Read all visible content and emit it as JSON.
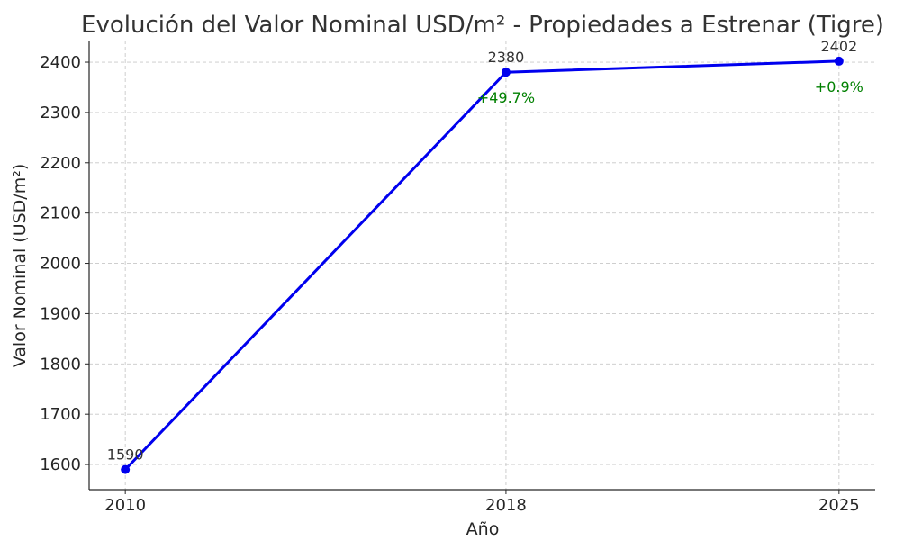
{
  "chart_data": {
    "type": "line",
    "title": "Evolución del Valor Nominal USD/m² - Propiedades a Estrenar (Tigre)",
    "xlabel": "Año",
    "ylabel": "Valor Nominal (USD/m²)",
    "x": [
      2010,
      2018,
      2025
    ],
    "series": [
      {
        "name": "Valor Nominal",
        "values": [
          1590,
          2380,
          2402
        ],
        "color": "#0000ee"
      }
    ],
    "value_labels": [
      "1590",
      "2380",
      "2402"
    ],
    "pct_labels": [
      "",
      "+49.7%",
      "+0.9%"
    ],
    "pct_color": "#008000",
    "xticks": [
      "2010",
      "2018",
      "2025"
    ],
    "yticks": [
      "1600",
      "1700",
      "1800",
      "1900",
      "2000",
      "2100",
      "2200",
      "2300",
      "2400"
    ],
    "xlim": [
      2009.24,
      2025.76
    ],
    "ylim": [
      1550,
      2443
    ],
    "grid": true,
    "legend": "none"
  }
}
